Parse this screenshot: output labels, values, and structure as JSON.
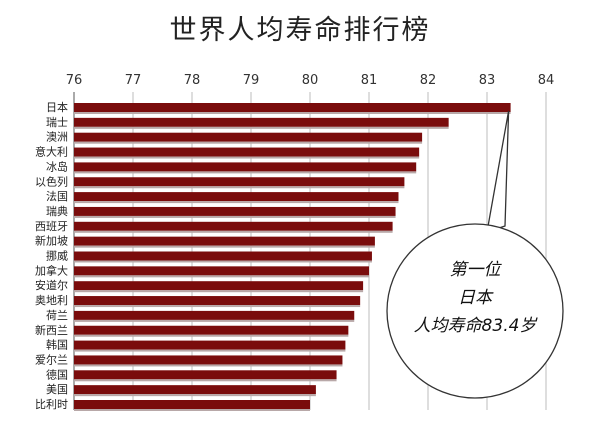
{
  "chart_data": {
    "type": "bar",
    "orientation": "horizontal",
    "title": "世界人均寿命排行榜",
    "xlim": [
      76,
      84
    ],
    "xticks": [
      "76",
      "77",
      "78",
      "79",
      "80",
      "81",
      "82",
      "83",
      "84"
    ],
    "categories": [
      "日本",
      "瑞士",
      "澳洲",
      "意大利",
      "冰岛",
      "以色列",
      "法国",
      "瑞典",
      "西班牙",
      "新加坡",
      "挪威",
      "加拿大",
      "安道尔",
      "奥地利",
      "荷兰",
      "新西兰",
      "韩国",
      "爱尔兰",
      "德国",
      "美国",
      "比利时"
    ],
    "values": [
      83.4,
      82.35,
      81.9,
      81.85,
      81.8,
      81.6,
      81.5,
      81.45,
      81.4,
      81.1,
      81.05,
      81.0,
      80.9,
      80.85,
      80.75,
      80.65,
      80.6,
      80.55,
      80.45,
      80.1,
      80.0
    ],
    "bar_color": "#7a0c0c",
    "grid": "vertical",
    "annotation": {
      "lines": [
        "第一位",
        "日本",
        "人均寿命83.4岁"
      ]
    }
  }
}
